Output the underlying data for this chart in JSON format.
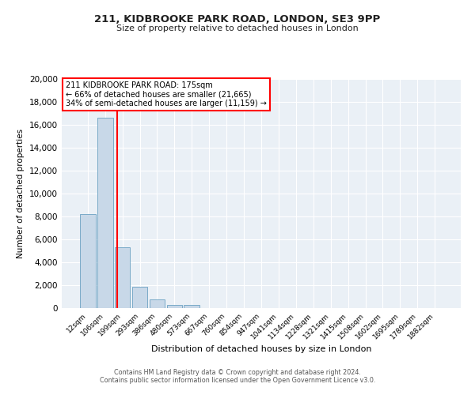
{
  "title1": "211, KIDBROOKE PARK ROAD, LONDON, SE3 9PP",
  "title2": "Size of property relative to detached houses in London",
  "xlabel": "Distribution of detached houses by size in London",
  "ylabel": "Number of detached properties",
  "bar_labels": [
    "12sqm",
    "106sqm",
    "199sqm",
    "293sqm",
    "386sqm",
    "480sqm",
    "573sqm",
    "667sqm",
    "760sqm",
    "854sqm",
    "947sqm",
    "1041sqm",
    "1134sqm",
    "1228sqm",
    "1321sqm",
    "1415sqm",
    "1508sqm",
    "1602sqm",
    "1695sqm",
    "1789sqm",
    "1882sqm"
  ],
  "bar_values": [
    8200,
    16600,
    5300,
    1850,
    750,
    300,
    300,
    0,
    0,
    0,
    0,
    0,
    0,
    0,
    0,
    0,
    0,
    0,
    0,
    0,
    0
  ],
  "bar_color": "#c8d8e8",
  "bar_edgecolor": "#7aaac8",
  "redline_x": 1.72,
  "ylim": [
    0,
    20000
  ],
  "yticks": [
    0,
    2000,
    4000,
    6000,
    8000,
    10000,
    12000,
    14000,
    16000,
    18000,
    20000
  ],
  "annotation_title": "211 KIDBROOKE PARK ROAD: 175sqm",
  "annotation_line1": "← 66% of detached houses are smaller (21,665)",
  "annotation_line2": "34% of semi-detached houses are larger (11,159) →",
  "footer1": "Contains HM Land Registry data © Crown copyright and database right 2024.",
  "footer2": "Contains public sector information licensed under the Open Government Licence v3.0.",
  "background_color": "#ffffff",
  "plot_bg_color": "#eaf0f6",
  "grid_color": "#ffffff"
}
